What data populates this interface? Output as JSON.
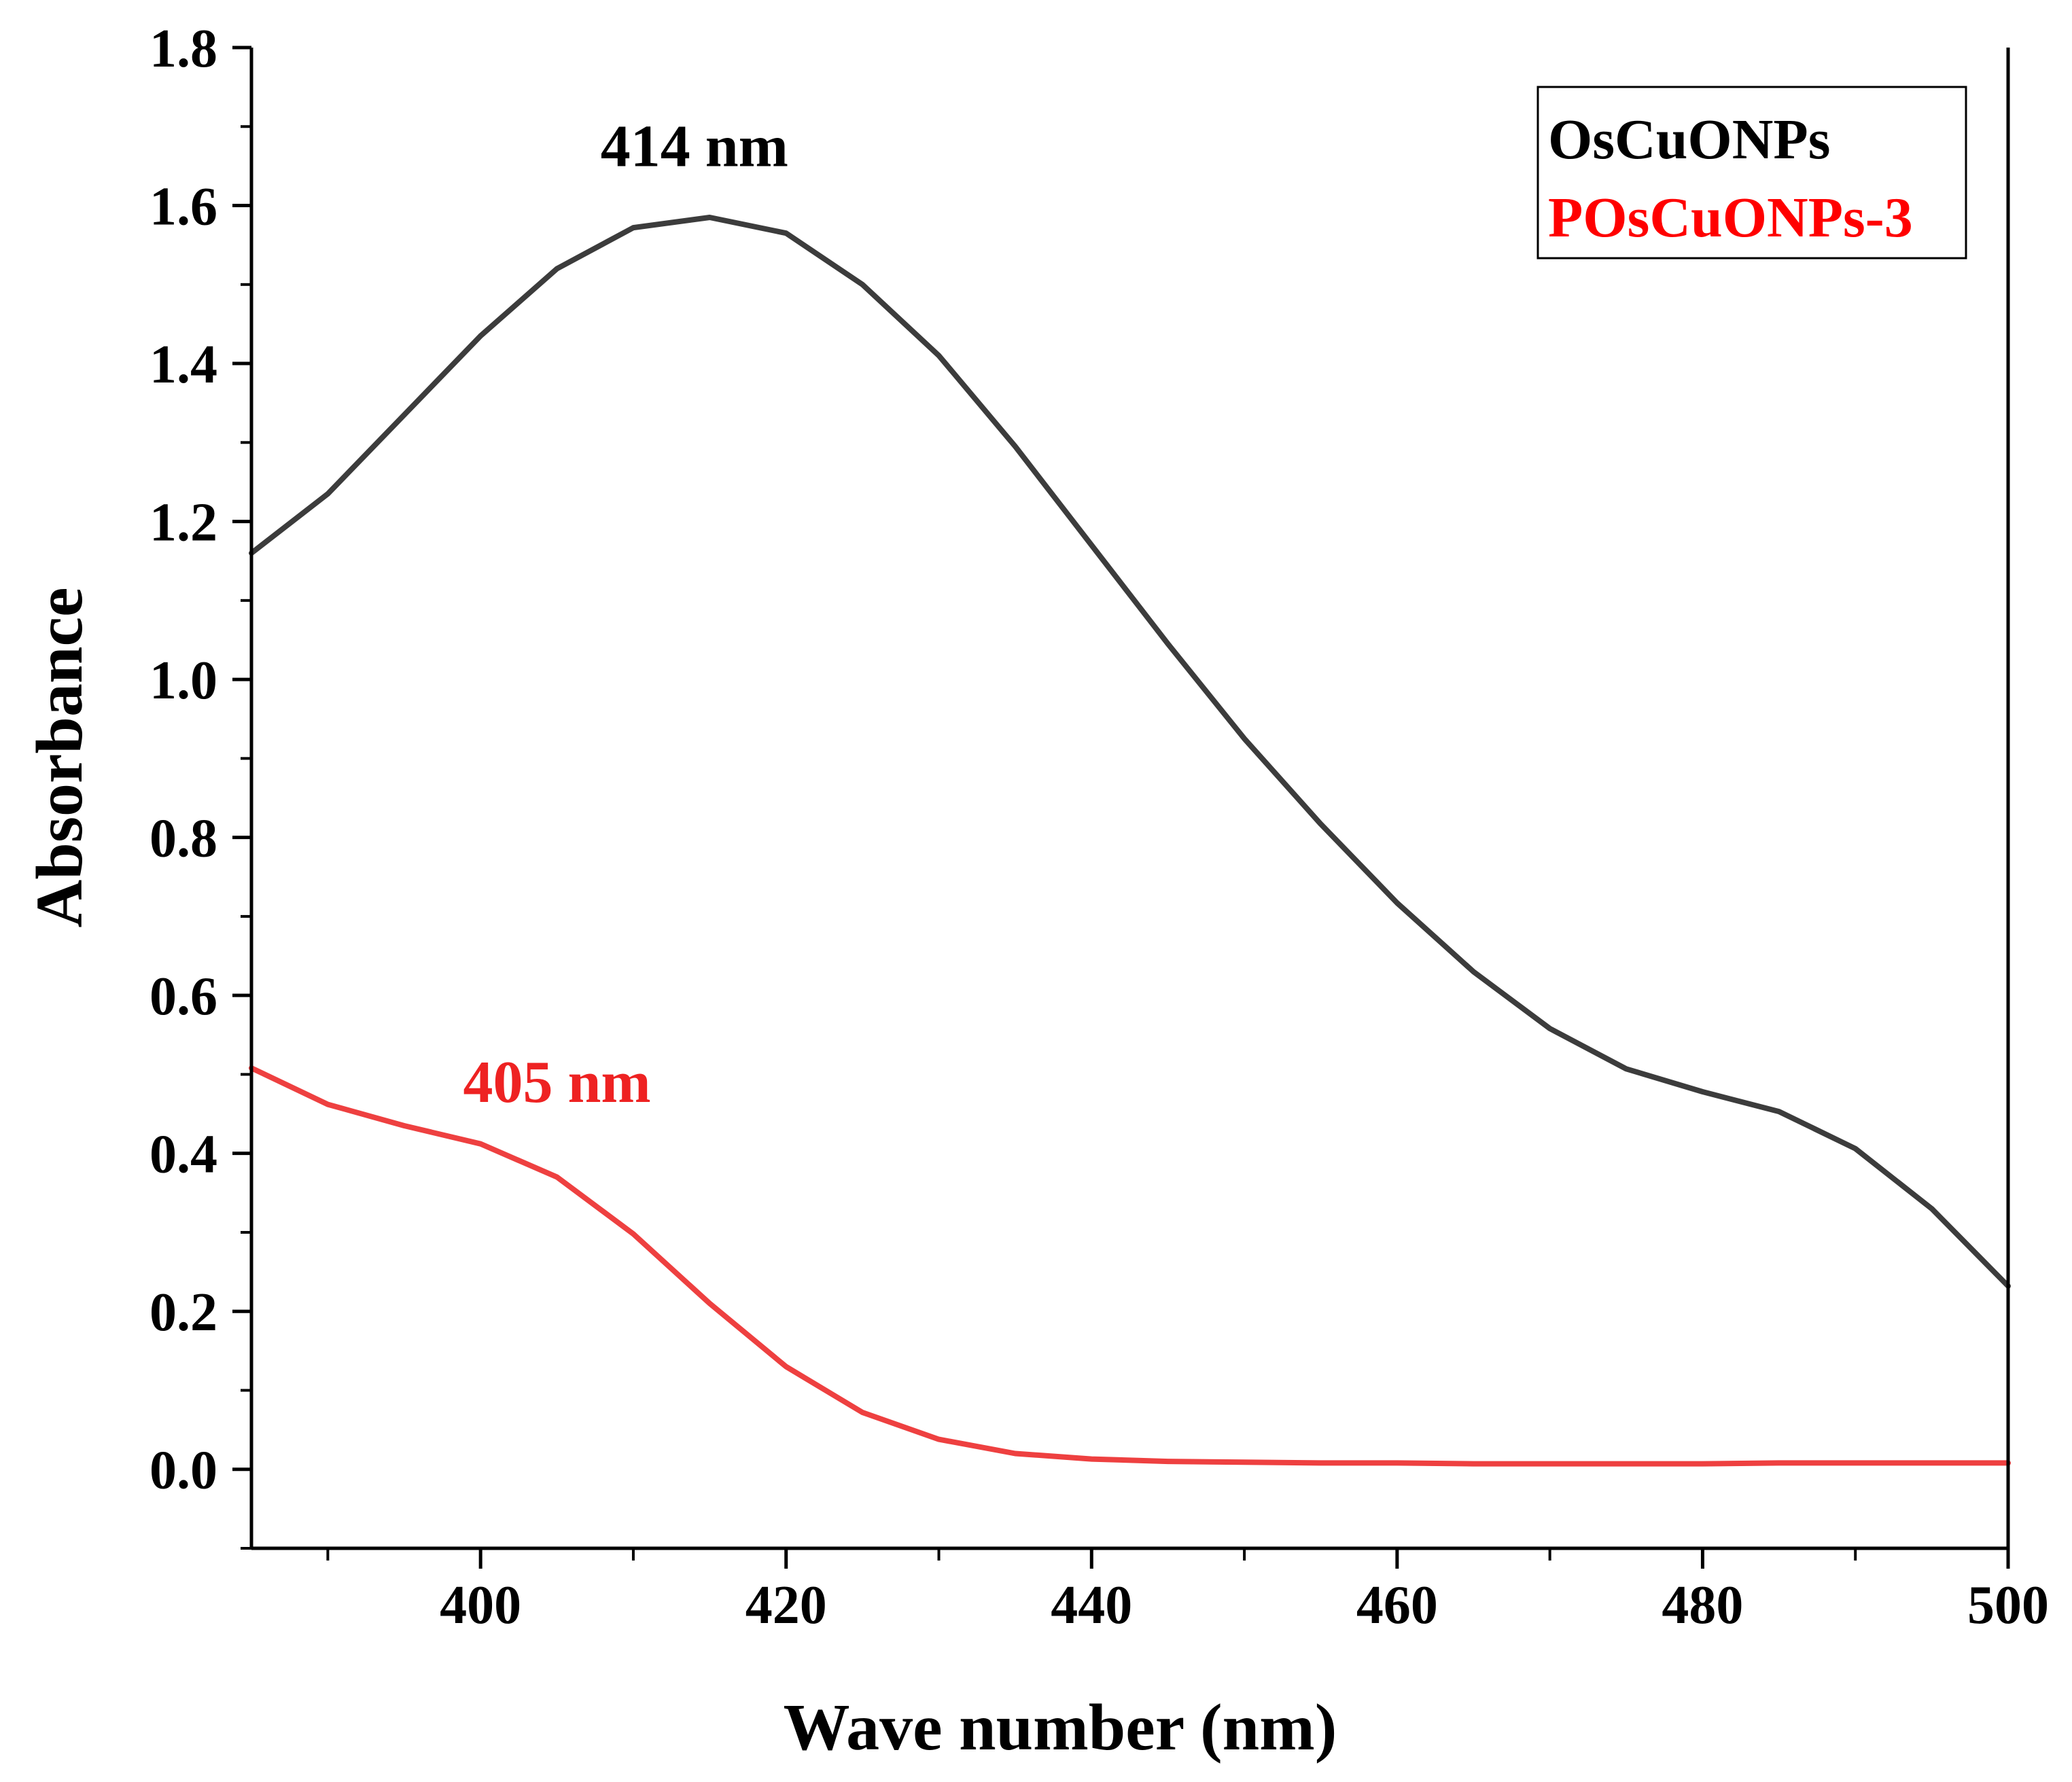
{
  "chart_data": {
    "type": "line",
    "title": "",
    "xlabel": "Wave number (nm)",
    "ylabel": "Absorbance",
    "xlim": [
      385,
      500
    ],
    "ylim": [
      -0.1,
      1.8
    ],
    "x_ticks": [
      400,
      420,
      440,
      460,
      480,
      500
    ],
    "y_ticks": [
      0.0,
      0.2,
      0.4,
      0.6,
      0.8,
      1.0,
      1.2,
      1.4,
      1.6,
      1.8
    ],
    "x_tick_labels": [
      "400",
      "420",
      "440",
      "460",
      "480",
      "500"
    ],
    "y_tick_labels": [
      "0.0",
      "0.2",
      "0.4",
      "0.6",
      "0.8",
      "1.0",
      "1.2",
      "1.4",
      "1.6",
      "1.8"
    ],
    "legend_position": "top-right",
    "grid": false,
    "series": [
      {
        "name": "OsCuONPs",
        "color": "#3c3c3c",
        "x": [
          385,
          390,
          395,
          400,
          405,
          410,
          415,
          420,
          425,
          430,
          435,
          440,
          445,
          450,
          455,
          460,
          465,
          470,
          475,
          480,
          485,
          490,
          495,
          500
        ],
        "values": [
          1.16,
          1.235,
          1.335,
          1.435,
          1.52,
          1.572,
          1.585,
          1.565,
          1.5,
          1.41,
          1.295,
          1.17,
          1.045,
          0.925,
          0.817,
          0.717,
          0.63,
          0.558,
          0.507,
          0.478,
          0.453,
          0.406,
          0.33,
          0.232
        ]
      },
      {
        "name": "POsCuONPs-3",
        "color": "#ee4040",
        "x": [
          385,
          390,
          395,
          400,
          405,
          410,
          415,
          420,
          425,
          430,
          435,
          440,
          445,
          450,
          455,
          460,
          465,
          470,
          475,
          480,
          485,
          490,
          495,
          500
        ],
        "values": [
          0.508,
          0.462,
          0.435,
          0.412,
          0.37,
          0.298,
          0.21,
          0.13,
          0.072,
          0.038,
          0.02,
          0.013,
          0.01,
          0.009,
          0.008,
          0.008,
          0.007,
          0.007,
          0.007,
          0.007,
          0.008,
          0.008,
          0.008,
          0.008
        ]
      }
    ],
    "annotations": [
      {
        "text": "414 nm",
        "x": 414,
        "y": 1.65,
        "color": "#000000"
      },
      {
        "text": "405 nm",
        "x": 405,
        "y": 0.465,
        "color": "#ee2222"
      }
    ]
  },
  "legend_text_colors": [
    "#000000",
    "#ff0000"
  ]
}
